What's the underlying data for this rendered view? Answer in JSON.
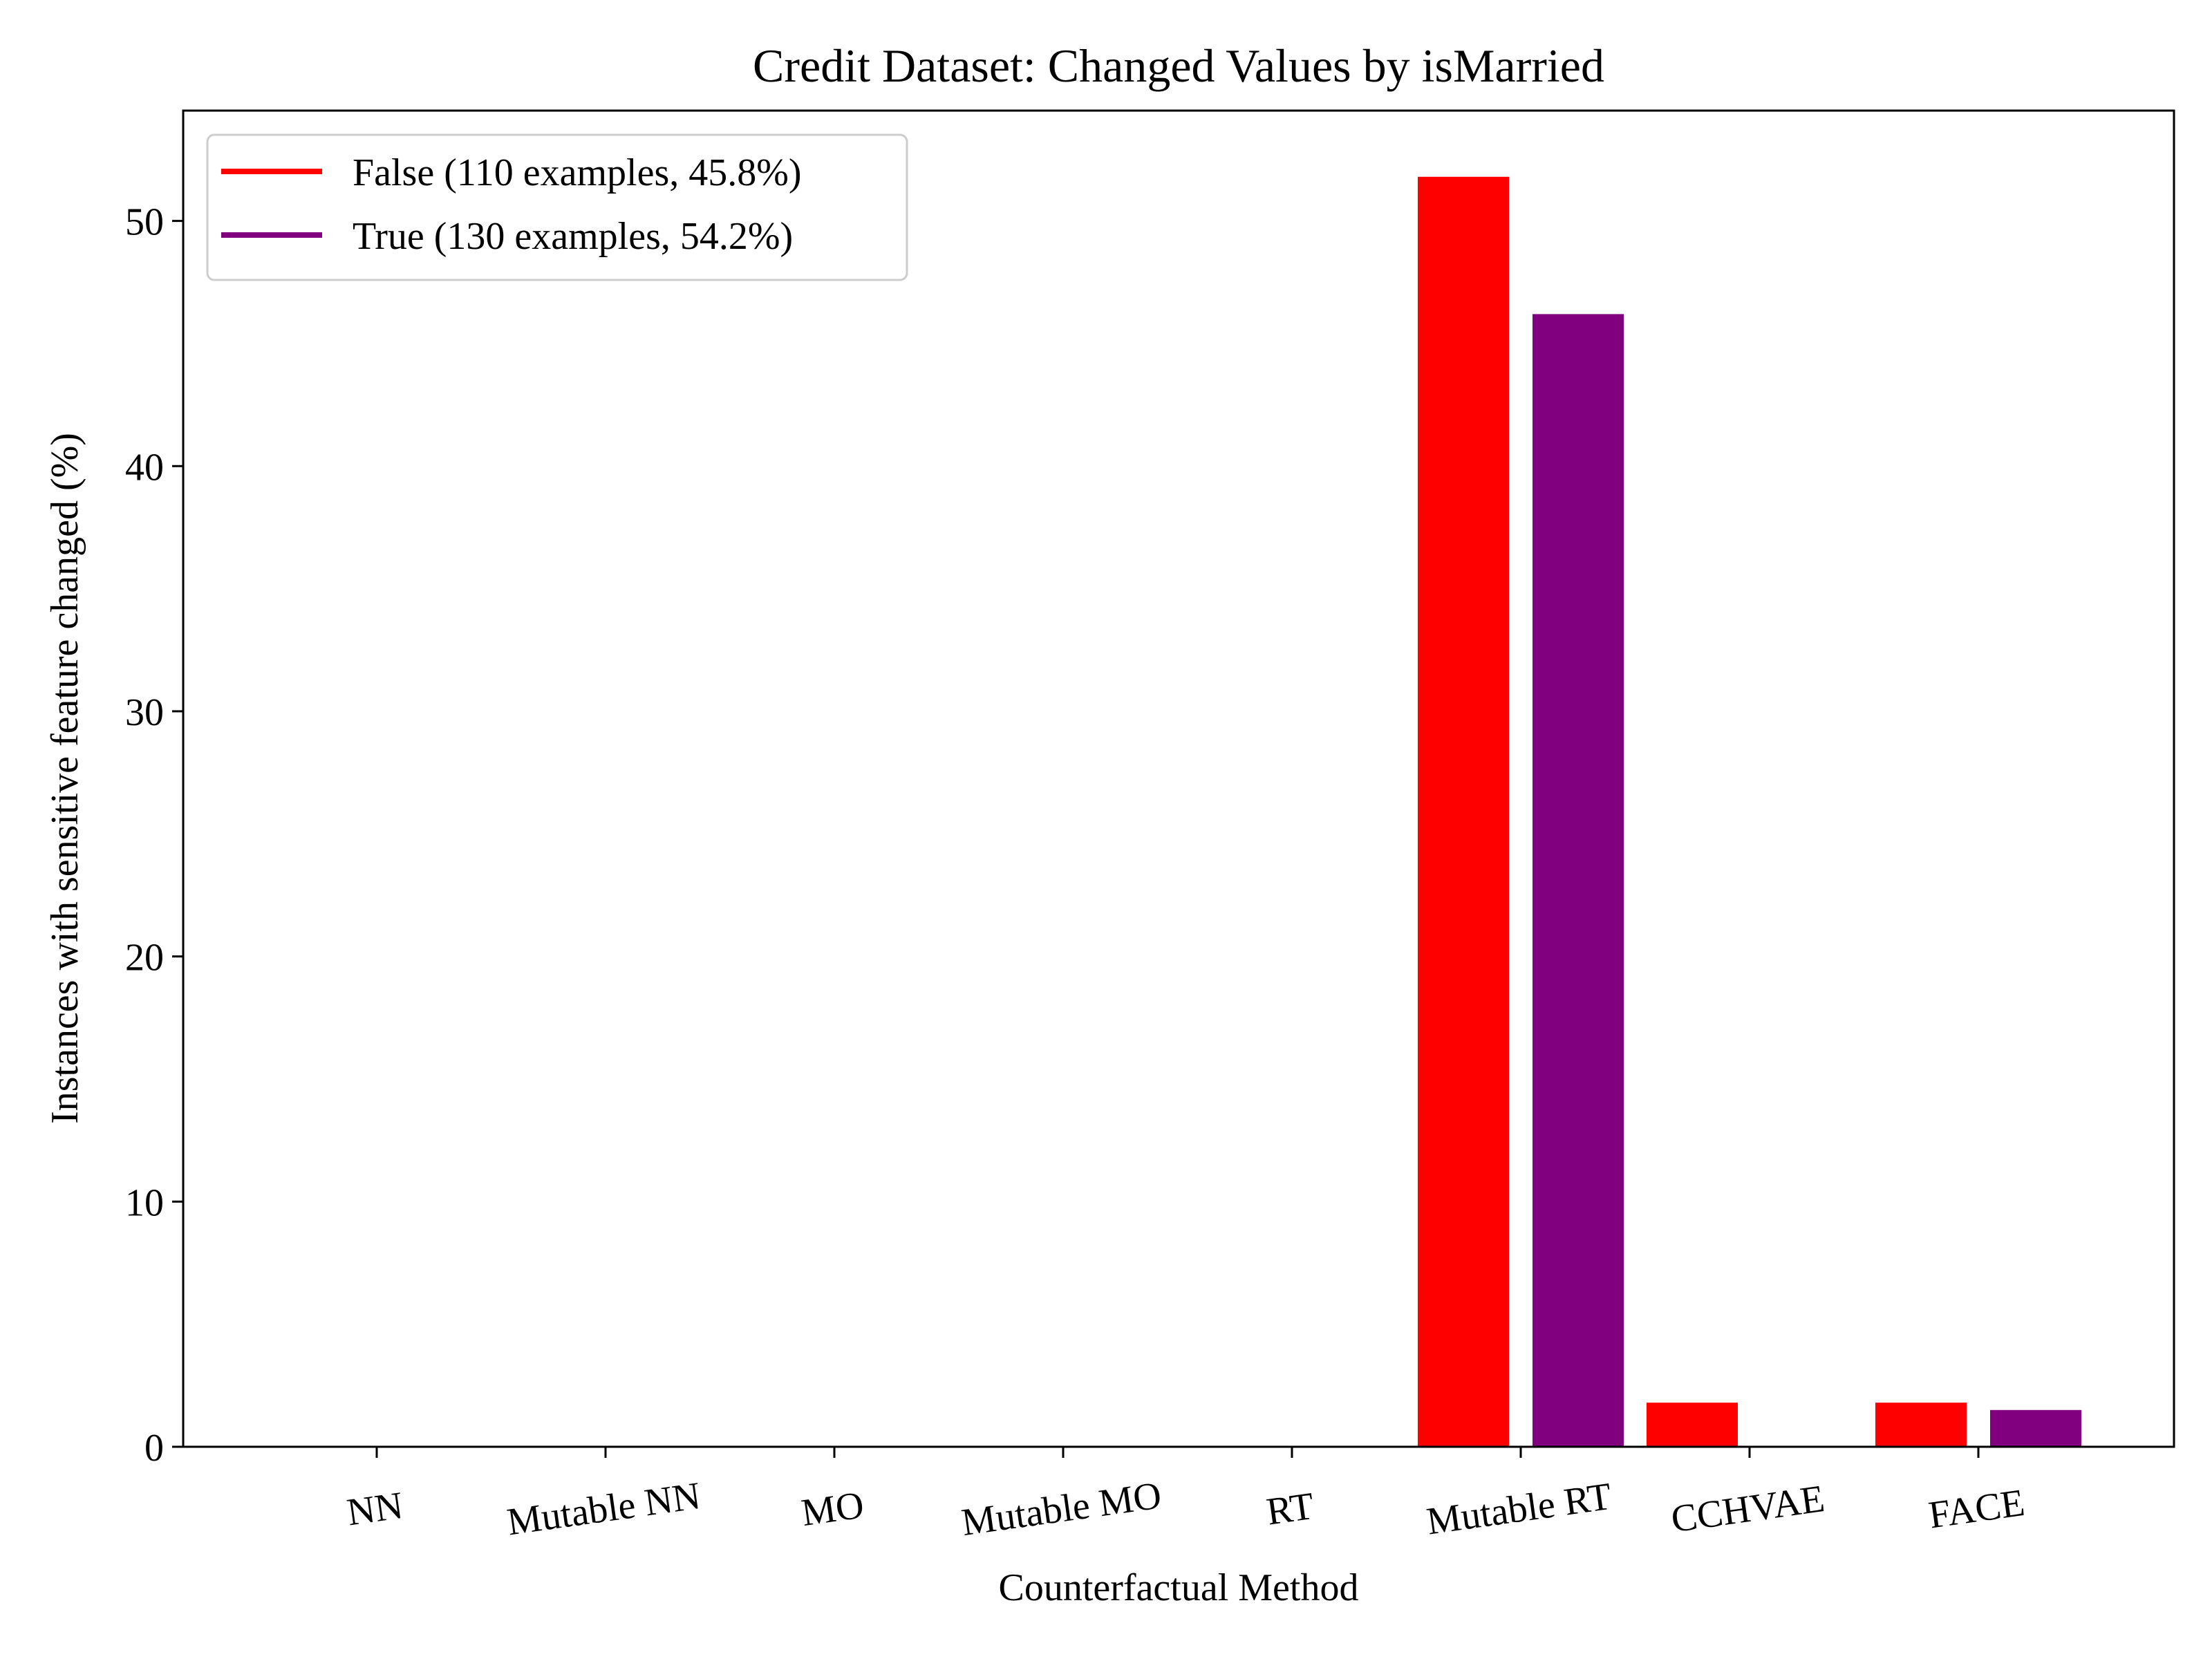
{
  "chart_data": {
    "type": "bar",
    "title": "Credit Dataset: Changed Values by isMarried",
    "xlabel": "Counterfactual Method",
    "ylabel": "Instances with sensitive feature changed (%)",
    "categories": [
      "NN",
      "Mutable NN",
      "MO",
      "Mutable MO",
      "RT",
      "Mutable RT",
      "CCHVAE",
      "FACE"
    ],
    "series": [
      {
        "name": "False (110 examples, 45.8%)",
        "color": "#ff0000",
        "values": [
          0,
          0,
          0,
          0,
          0,
          51.8,
          1.8,
          1.8
        ]
      },
      {
        "name": "True (130 examples, 54.2%)",
        "color": "#800080",
        "values": [
          0,
          0,
          0,
          0,
          0,
          46.2,
          0,
          1.5
        ]
      }
    ],
    "ylim": [
      0,
      54.5
    ],
    "yticks": [
      0,
      10,
      20,
      30,
      40,
      50
    ],
    "grid": false,
    "legend_position": "top-left",
    "tick_label_rotation": "slight counter-clockwise"
  }
}
